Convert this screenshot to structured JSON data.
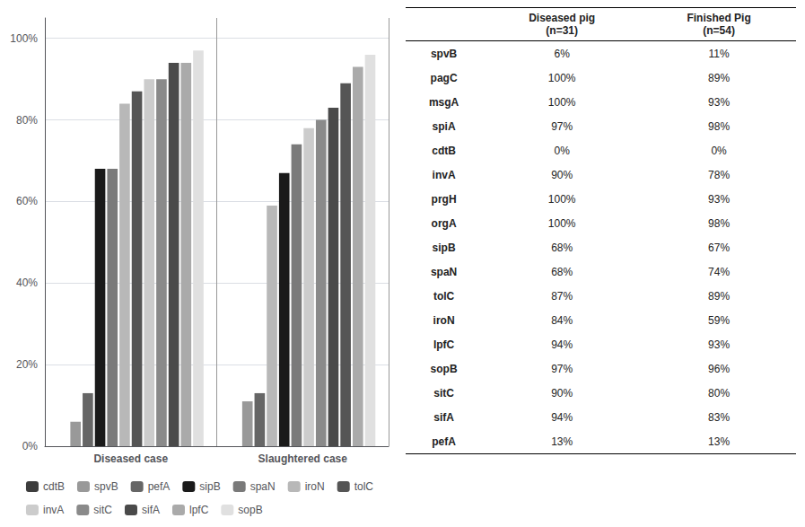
{
  "chart_data": [
    {
      "type": "bar",
      "categories": [
        "Diseased case",
        "Slaughtered case"
      ],
      "series": [
        {
          "name": "cdtB",
          "color": "#3d3d3d",
          "values": [
            0,
            0
          ]
        },
        {
          "name": "spvB",
          "color": "#999999",
          "values": [
            6,
            11
          ]
        },
        {
          "name": "pefA",
          "color": "#666666",
          "values": [
            13,
            13
          ]
        },
        {
          "name": "sipB",
          "color": "#1a1a1a",
          "values": [
            68,
            67
          ]
        },
        {
          "name": "spaN",
          "color": "#7a7a7a",
          "values": [
            68,
            74
          ]
        },
        {
          "name": "iroN",
          "color": "#b8b8b8",
          "values": [
            84,
            59
          ]
        },
        {
          "name": "tolC",
          "color": "#555555",
          "values": [
            87,
            89
          ]
        },
        {
          "name": "invA",
          "color": "#cccccc",
          "values": [
            90,
            78
          ]
        },
        {
          "name": "sitC",
          "color": "#8a8a8a",
          "values": [
            90,
            80
          ]
        },
        {
          "name": "sifA",
          "color": "#4a4a4a",
          "values": [
            94,
            83
          ]
        },
        {
          "name": "lpfC",
          "color": "#aaaaaa",
          "values": [
            94,
            93
          ]
        },
        {
          "name": "sopB",
          "color": "#e0e0e0",
          "values": [
            97,
            96
          ]
        }
      ],
      "order": [
        [
          "cdtB",
          "spvB",
          "pefA",
          "sipB",
          "spaN",
          "iroN",
          "tolC",
          "invA",
          "sitC",
          "sifA",
          "lpfC",
          "sopB"
        ],
        [
          "cdtB",
          "spvB",
          "pefA",
          "iroN",
          "sipB",
          "spaN",
          "invA",
          "sitC",
          "sifA",
          "tolC",
          "lpfC",
          "sopB"
        ]
      ],
      "ylim": [
        0,
        105
      ],
      "yticks": [
        {
          "value": 0,
          "label": "0%"
        },
        {
          "value": 20,
          "label": "20%"
        },
        {
          "value": 40,
          "label": "40%"
        },
        {
          "value": 60,
          "label": "60%"
        },
        {
          "value": 80,
          "label": "80%"
        },
        {
          "value": 100,
          "label": "100%"
        }
      ],
      "grid": true,
      "legend": "bottom"
    },
    {
      "type": "table",
      "columns": [
        "Diseased pig\n(n=31)",
        "Finished Pig\n(n=54)"
      ],
      "rows": [
        {
          "label": "spvB",
          "values": [
            6,
            11
          ],
          "value_labels": [
            "6%",
            "11%"
          ]
        },
        {
          "label": "pagC",
          "values": [
            100,
            89
          ],
          "value_labels": [
            "100%",
            "89%"
          ]
        },
        {
          "label": "msgA",
          "values": [
            100,
            93
          ],
          "value_labels": [
            "100%",
            "93%"
          ]
        },
        {
          "label": "spiA",
          "values": [
            97,
            98
          ],
          "value_labels": [
            "97%",
            "98%"
          ]
        },
        {
          "label": "cdtB",
          "values": [
            0,
            0
          ],
          "value_labels": [
            "0%",
            "0%"
          ]
        },
        {
          "label": "invA",
          "values": [
            90,
            78
          ],
          "value_labels": [
            "90%",
            "78%"
          ]
        },
        {
          "label": "prgH",
          "values": [
            100,
            93
          ],
          "value_labels": [
            "100%",
            "93%"
          ]
        },
        {
          "label": "orgA",
          "values": [
            100,
            98
          ],
          "value_labels": [
            "100%",
            "98%"
          ]
        },
        {
          "label": "sipB",
          "values": [
            68,
            67
          ],
          "value_labels": [
            "68%",
            "67%"
          ]
        },
        {
          "label": "spaN",
          "values": [
            68,
            74
          ],
          "value_labels": [
            "68%",
            "74%"
          ]
        },
        {
          "label": "tolC",
          "values": [
            87,
            89
          ],
          "value_labels": [
            "87%",
            "89%"
          ]
        },
        {
          "label": "iroN",
          "values": [
            84,
            59
          ],
          "value_labels": [
            "84%",
            "59%"
          ]
        },
        {
          "label": "lpfC",
          "values": [
            94,
            93
          ],
          "value_labels": [
            "94%",
            "93%"
          ]
        },
        {
          "label": "sopB",
          "values": [
            97,
            96
          ],
          "value_labels": [
            "97%",
            "96%"
          ]
        },
        {
          "label": "sitC",
          "values": [
            90,
            80
          ],
          "value_labels": [
            "90%",
            "80%"
          ]
        },
        {
          "label": "sifA",
          "values": [
            94,
            83
          ],
          "value_labels": [
            "94%",
            "83%"
          ]
        },
        {
          "label": "pefA",
          "values": [
            13,
            13
          ],
          "value_labels": [
            "13%",
            "13%"
          ]
        }
      ]
    }
  ]
}
